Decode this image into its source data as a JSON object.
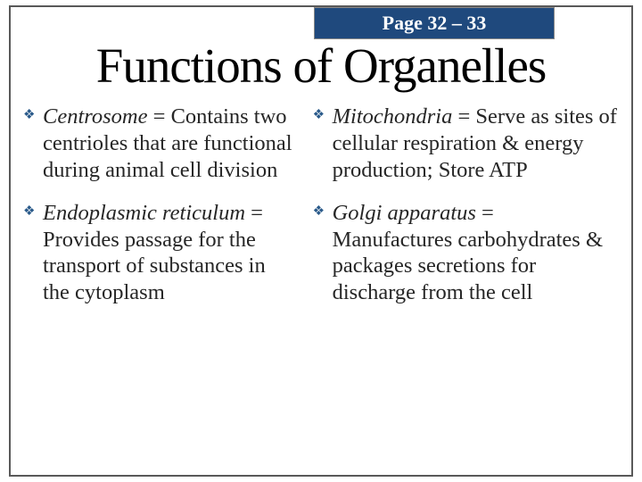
{
  "page_tab": "Page 32 – 33",
  "title": "Functions of Organelles",
  "bullet_glyph": "❖",
  "colors": {
    "tab_bg": "#1f497d",
    "tab_text": "#ffffff",
    "border": "#595959",
    "bullet": "#2a5a8a",
    "body_text": "#262626",
    "title_text": "#000000",
    "background": "#ffffff"
  },
  "typography": {
    "title_fontsize": 55,
    "tab_fontsize": 22,
    "body_fontsize": 24.5,
    "font_family": "Times New Roman"
  },
  "left": [
    {
      "term": "Centrosome",
      "def": " = Contains two centrioles that are functional during animal cell division"
    },
    {
      "term": "Endoplasmic reticulum",
      "def": " = Provides passage for the transport of substances in the cytoplasm"
    }
  ],
  "right": [
    {
      "term": "Mitochondria",
      "def": " = Serve as sites of cellular respiration & energy production; Store ATP"
    },
    {
      "term": "Golgi apparatus",
      "def": " = Manufactures carbohydrates & packages secretions for discharge from the cell"
    }
  ]
}
